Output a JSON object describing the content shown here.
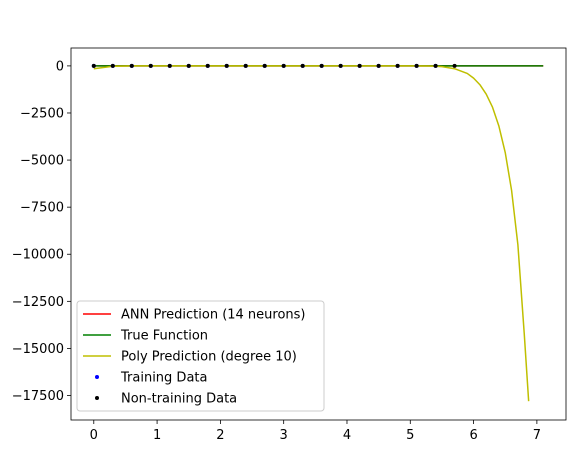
{
  "chart_data": {
    "type": "line",
    "title": "",
    "xlabel": "",
    "ylabel": "",
    "xlim": [
      -0.36,
      7.46
    ],
    "ylim": [
      -18800,
      950
    ],
    "grid": false,
    "x_ticks": [
      0,
      1,
      2,
      3,
      4,
      5,
      6,
      7
    ],
    "x_tick_labels": [
      "0",
      "1",
      "2",
      "3",
      "4",
      "5",
      "6",
      "7"
    ],
    "y_ticks": [
      0,
      -2500,
      -5000,
      -7500,
      -10000,
      -12500,
      -15000,
      -17500
    ],
    "y_tick_labels": [
      "0",
      "−2500",
      "−5000",
      "−7500",
      "−10000",
      "−12500",
      "−15000",
      "−17500"
    ],
    "legend_position": "lower left",
    "legend": [
      "ANN Prediction (14 neurons)",
      "True Function",
      "Poly Prediction (degree 10)",
      "Training Data",
      "Non-training Data"
    ],
    "series": [
      {
        "name": "ANN Prediction (14 neurons)",
        "kind": "line",
        "color": "#ff0000",
        "x": [
          0,
          7.1
        ],
        "y": [
          0,
          0
        ]
      },
      {
        "name": "True Function",
        "kind": "line",
        "color": "#008000",
        "x": [
          0,
          7.1
        ],
        "y": [
          0,
          0
        ]
      },
      {
        "name": "Poly Prediction (degree 10)",
        "kind": "line",
        "color": "#bfbf00",
        "x": [
          0,
          0.3,
          0.6,
          1.0,
          1.5,
          2.0,
          2.5,
          3.0,
          3.5,
          4.0,
          4.5,
          5.0,
          5.3,
          5.5,
          5.7,
          5.9,
          6.0,
          6.1,
          6.2,
          6.3,
          6.4,
          6.5,
          6.6,
          6.7,
          6.8,
          6.87
        ],
        "y": [
          -150,
          -20,
          0,
          0,
          0,
          0,
          0,
          0,
          0,
          0,
          0,
          0,
          -5,
          -40,
          -150,
          -400,
          -650,
          -1000,
          -1500,
          -2200,
          -3200,
          -4600,
          -6600,
          -9500,
          -14200,
          -17800
        ]
      },
      {
        "name": "Training Data",
        "kind": "scatter",
        "color": "#0000ff",
        "x": [
          0,
          0.3,
          0.6,
          0.9,
          1.2,
          1.5,
          1.8,
          2.1,
          2.4,
          2.7,
          3.0,
          3.3,
          3.6,
          3.9,
          4.2,
          4.5,
          4.8,
          5.1,
          5.4
        ],
        "y": [
          0,
          0,
          0,
          0,
          0,
          0,
          0,
          0,
          0,
          0,
          0,
          0,
          0,
          0,
          0,
          0,
          0,
          0,
          0
        ]
      },
      {
        "name": "Non-training Data",
        "kind": "scatter",
        "color": "#000000",
        "x": [
          0,
          0.3,
          0.6,
          0.9,
          1.2,
          1.5,
          1.8,
          2.1,
          2.4,
          2.7,
          3.0,
          3.3,
          3.6,
          3.9,
          4.2,
          4.5,
          4.8,
          5.1,
          5.4,
          5.7
        ],
        "y": [
          0,
          0,
          0,
          0,
          0,
          0,
          0,
          0,
          0,
          0,
          0,
          0,
          0,
          0,
          0,
          0,
          0,
          0,
          0,
          0
        ]
      }
    ]
  }
}
